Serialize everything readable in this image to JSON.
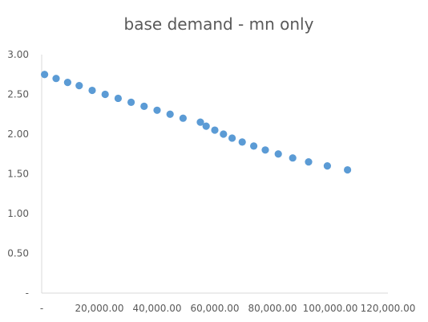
{
  "chart_data": {
    "type": "scatter",
    "title": "base demand - mn only",
    "xlabel": "",
    "ylabel": "",
    "xlim": [
      0,
      120000
    ],
    "ylim": [
      0,
      3
    ],
    "grid": false,
    "legend": "none",
    "x_ticks": [
      0,
      20000,
      40000,
      60000,
      80000,
      100000,
      120000
    ],
    "x_tick_labels": [
      "-",
      "20,000.00",
      "40,000.00",
      "60,000.00",
      "80,000.00",
      "100,000.00",
      "120,000.00"
    ],
    "y_ticks": [
      0,
      0.5,
      1,
      1.5,
      2,
      2.5,
      3
    ],
    "y_tick_labels": [
      "-",
      "0.50",
      "1.00",
      "1.50",
      "2.00",
      "2.50",
      "3.00"
    ],
    "marker_color": "#5B9BD5",
    "axis_color": "#D9D9D9",
    "series": [
      {
        "x": [
          1000,
          5000,
          9000,
          13000,
          17500,
          22000,
          26500,
          31000,
          35500,
          40000,
          44500,
          49000,
          55000,
          57000,
          60000,
          63000,
          66000,
          69500,
          73500,
          77500,
          82000,
          87000,
          92500,
          99000,
          106000
        ],
        "y": [
          2.75,
          2.7,
          2.65,
          2.61,
          2.55,
          2.5,
          2.45,
          2.4,
          2.35,
          2.3,
          2.25,
          2.2,
          2.15,
          2.1,
          2.05,
          2.0,
          1.95,
          1.9,
          1.85,
          1.8,
          1.75,
          1.7,
          1.65,
          1.6,
          1.55
        ]
      }
    ]
  }
}
